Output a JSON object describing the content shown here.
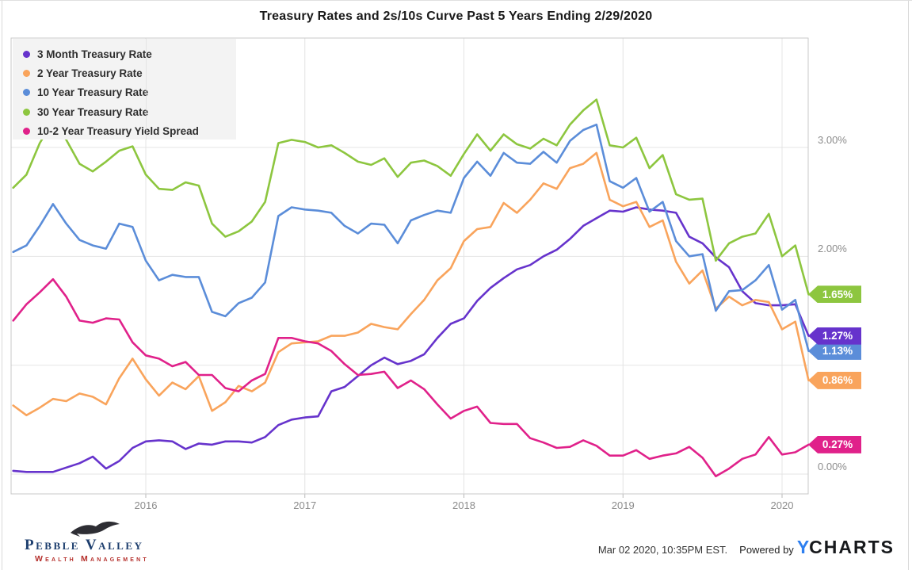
{
  "title": "Treasury Rates and 2s/10s Curve Past 5 Years Ending 2/29/2020",
  "chart_data": {
    "type": "line",
    "title": "Treasury Rates and 2s/10s Curve Past 5 Years Ending 2/29/2020",
    "x_start_month": "2015-03",
    "x_end_month": "2020-02",
    "x_unit": "month",
    "points_per_series": 61,
    "x_tick_labels": [
      "2016",
      "2017",
      "2018",
      "2019",
      "2020"
    ],
    "y_tick_labels": [
      {
        "text": "3.00%",
        "value": 3.0
      },
      {
        "text": "2.00%",
        "value": 2.0
      },
      {
        "text": "0.00%",
        "value": 0.0
      }
    ],
    "y_gridline_values": [
      0,
      1,
      2,
      3
    ],
    "ylim": [
      -0.19,
      4.0
    ],
    "grid": true,
    "legend_position": "top-left",
    "series": [
      {
        "name": "3 Month Treasury Rate",
        "color": "#6633cc",
        "end_label": "1.27%",
        "values": [
          0.03,
          0.02,
          0.02,
          0.02,
          0.06,
          0.1,
          0.16,
          0.05,
          0.12,
          0.24,
          0.3,
          0.31,
          0.3,
          0.23,
          0.28,
          0.27,
          0.3,
          0.3,
          0.29,
          0.34,
          0.45,
          0.5,
          0.52,
          0.53,
          0.76,
          0.8,
          0.9,
          1.0,
          1.07,
          1.01,
          1.04,
          1.1,
          1.25,
          1.38,
          1.43,
          1.59,
          1.71,
          1.8,
          1.88,
          1.92,
          2.0,
          2.06,
          2.16,
          2.28,
          2.35,
          2.42,
          2.41,
          2.45,
          2.43,
          2.42,
          2.4,
          2.18,
          2.12,
          1.99,
          1.9,
          1.68,
          1.57,
          1.55,
          1.55,
          1.56,
          1.27
        ]
      },
      {
        "name": "2 Year Treasury Rate",
        "color": "#f9a45c",
        "end_label": "0.86%",
        "values": [
          0.63,
          0.54,
          0.61,
          0.69,
          0.67,
          0.74,
          0.71,
          0.64,
          0.88,
          1.06,
          0.87,
          0.72,
          0.84,
          0.78,
          0.9,
          0.58,
          0.66,
          0.81,
          0.76,
          0.84,
          1.12,
          1.2,
          1.21,
          1.22,
          1.27,
          1.27,
          1.3,
          1.38,
          1.35,
          1.33,
          1.47,
          1.6,
          1.78,
          1.89,
          2.14,
          2.25,
          2.27,
          2.49,
          2.4,
          2.52,
          2.67,
          2.62,
          2.81,
          2.85,
          2.95,
          2.52,
          2.46,
          2.5,
          2.27,
          2.33,
          1.95,
          1.75,
          1.87,
          1.52,
          1.63,
          1.55,
          1.6,
          1.58,
          1.33,
          1.4,
          0.86
        ]
      },
      {
        "name": "10 Year Treasury Rate",
        "color": "#5b8dd9",
        "end_label": "1.13%",
        "values": [
          2.04,
          2.1,
          2.28,
          2.48,
          2.3,
          2.15,
          2.1,
          2.07,
          2.3,
          2.27,
          1.96,
          1.78,
          1.83,
          1.81,
          1.81,
          1.49,
          1.45,
          1.57,
          1.62,
          1.76,
          2.37,
          2.45,
          2.43,
          2.42,
          2.4,
          2.28,
          2.21,
          2.3,
          2.29,
          2.12,
          2.33,
          2.38,
          2.42,
          2.4,
          2.72,
          2.87,
          2.74,
          2.95,
          2.86,
          2.85,
          2.96,
          2.86,
          3.06,
          3.16,
          3.21,
          2.69,
          2.63,
          2.72,
          2.41,
          2.5,
          2.14,
          2.0,
          2.02,
          1.5,
          1.68,
          1.69,
          1.78,
          1.92,
          1.51,
          1.6,
          1.13
        ]
      },
      {
        "name": "30 Year Treasury Rate",
        "color": "#8dc63f",
        "end_label": "1.65%",
        "values": [
          2.63,
          2.75,
          3.04,
          3.24,
          3.07,
          2.85,
          2.78,
          2.87,
          2.97,
          3.01,
          2.75,
          2.62,
          2.61,
          2.68,
          2.65,
          2.3,
          2.18,
          2.23,
          2.32,
          2.5,
          3.04,
          3.07,
          3.05,
          3.0,
          3.02,
          2.95,
          2.87,
          2.84,
          2.9,
          2.73,
          2.86,
          2.88,
          2.83,
          2.74,
          2.94,
          3.12,
          2.97,
          3.12,
          3.03,
          2.99,
          3.08,
          3.02,
          3.21,
          3.34,
          3.44,
          3.02,
          3.0,
          3.09,
          2.81,
          2.93,
          2.57,
          2.52,
          2.53,
          1.96,
          2.12,
          2.18,
          2.21,
          2.39,
          2.0,
          2.1,
          1.65
        ]
      },
      {
        "name": "10-2 Year Treasury Yield Spread",
        "color": "#e0218a",
        "end_label": "0.27%",
        "values": [
          1.41,
          1.56,
          1.67,
          1.79,
          1.63,
          1.41,
          1.39,
          1.43,
          1.42,
          1.21,
          1.09,
          1.06,
          0.99,
          1.03,
          0.91,
          0.91,
          0.79,
          0.76,
          0.86,
          0.92,
          1.25,
          1.25,
          1.22,
          1.2,
          1.13,
          1.01,
          0.91,
          0.92,
          0.94,
          0.79,
          0.86,
          0.78,
          0.64,
          0.51,
          0.58,
          0.62,
          0.47,
          0.46,
          0.46,
          0.33,
          0.29,
          0.24,
          0.25,
          0.31,
          0.26,
          0.17,
          0.17,
          0.22,
          0.14,
          0.17,
          0.19,
          0.25,
          0.15,
          -0.02,
          0.05,
          0.14,
          0.18,
          0.34,
          0.18,
          0.2,
          0.27
        ]
      }
    ]
  },
  "footer": {
    "logo_name": "Pebble Valley",
    "logo_subtitle": "Wealth Management",
    "timestamp": "Mar 02 2020, 10:35PM EST.",
    "powered_by": "Powered by",
    "ycharts_y": "Y",
    "ycharts_rest": "CHARTS",
    "ycharts_blue": "#2d7ff0"
  }
}
